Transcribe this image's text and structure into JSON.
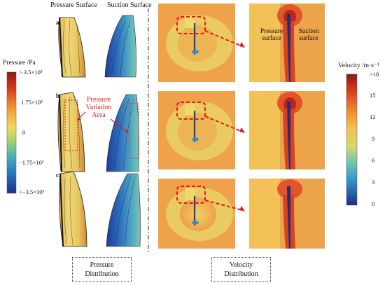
{
  "headers": {
    "pressure_surface": "Pressure Surface",
    "suction_surface": "Suction Surface"
  },
  "rows": [
    "a",
    "b",
    "c"
  ],
  "pressure_colorbar": {
    "title": "Pressure /Pa",
    "ticks": [
      "> 3.5×10³",
      "1.75×10³",
      "0",
      "−1.75×10³",
      "<−3.5×10³"
    ]
  },
  "velocity_colorbar": {
    "title": "Velocity /m·s⁻¹",
    "ticks": [
      ">18",
      "15",
      "12",
      "9",
      "6",
      "3",
      "0"
    ]
  },
  "annotation": {
    "pressure_variation": "Pressure Variation Area"
  },
  "zoom_labels": {
    "pressure": "Pressure surface",
    "suction": "Suction surface"
  },
  "captions": {
    "pressure": "Pressure Distribution",
    "velocity": "Velocity Distribution"
  },
  "colors": {
    "highlight_red": "#e31b1b",
    "field_orange": "#f0a24a",
    "field_yellow": "#e8d56a",
    "low_blue": "#1e3f9e",
    "high_red": "#8b1a0e"
  }
}
